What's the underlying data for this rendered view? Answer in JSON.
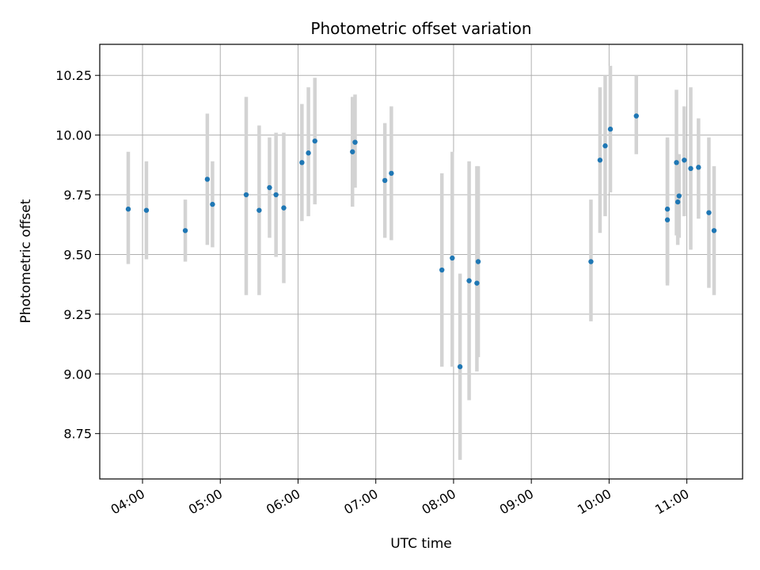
{
  "chart_data": {
    "type": "scatter",
    "title": "Photometric offset variation",
    "xlabel": "UTC time",
    "ylabel": "Photometric offset",
    "grid": true,
    "xlim": [
      "03:27",
      "11:43"
    ],
    "ylim": [
      8.56,
      10.38
    ],
    "x_tick_labels": [
      "04:00",
      "05:00",
      "06:00",
      "07:00",
      "08:00",
      "09:00",
      "10:00",
      "11:00"
    ],
    "y_tick_labels": [
      "8.75",
      "9.00",
      "9.25",
      "9.50",
      "9.75",
      "10.00",
      "10.25"
    ],
    "y_ticks": [
      8.75,
      9.0,
      9.25,
      9.5,
      9.75,
      10.0,
      10.25
    ],
    "colors": {
      "point": "#1f77b4",
      "errorbar": "#d3d3d3",
      "grid": "#b0b0b0"
    },
    "series": [
      {
        "points": [
          {
            "x": "03:49",
            "y": 9.69,
            "ylow": 9.46,
            "yhigh": 9.93
          },
          {
            "x": "04:03",
            "y": 9.685,
            "ylow": 9.48,
            "yhigh": 9.89
          },
          {
            "x": "04:33",
            "y": 9.6,
            "ylow": 9.47,
            "yhigh": 9.73
          },
          {
            "x": "04:50",
            "y": 9.815,
            "ylow": 9.54,
            "yhigh": 10.09
          },
          {
            "x": "04:54",
            "y": 9.71,
            "ylow": 9.53,
            "yhigh": 9.89
          },
          {
            "x": "05:20",
            "y": 9.75,
            "ylow": 9.33,
            "yhigh": 10.16
          },
          {
            "x": "05:30",
            "y": 9.685,
            "ylow": 9.33,
            "yhigh": 10.04
          },
          {
            "x": "05:38",
            "y": 9.78,
            "ylow": 9.57,
            "yhigh": 9.99
          },
          {
            "x": "05:43",
            "y": 9.75,
            "ylow": 9.49,
            "yhigh": 10.01
          },
          {
            "x": "05:49",
            "y": 9.695,
            "ylow": 9.38,
            "yhigh": 10.01
          },
          {
            "x": "06:03",
            "y": 9.885,
            "ylow": 9.64,
            "yhigh": 10.13
          },
          {
            "x": "06:08",
            "y": 9.925,
            "ylow": 9.66,
            "yhigh": 10.2
          },
          {
            "x": "06:13",
            "y": 9.975,
            "ylow": 9.71,
            "yhigh": 10.24
          },
          {
            "x": "06:42",
            "y": 9.93,
            "ylow": 9.7,
            "yhigh": 10.16
          },
          {
            "x": "06:44",
            "y": 9.97,
            "ylow": 9.78,
            "yhigh": 10.17
          },
          {
            "x": "07:07",
            "y": 9.81,
            "ylow": 9.57,
            "yhigh": 10.05
          },
          {
            "x": "07:12",
            "y": 9.84,
            "ylow": 9.56,
            "yhigh": 10.12
          },
          {
            "x": "07:51",
            "y": 9.435,
            "ylow": 9.03,
            "yhigh": 9.84
          },
          {
            "x": "07:59",
            "y": 9.485,
            "ylow": 9.03,
            "yhigh": 9.93
          },
          {
            "x": "08:05",
            "y": 9.03,
            "ylow": 8.64,
            "yhigh": 9.42
          },
          {
            "x": "08:12",
            "y": 9.39,
            "ylow": 8.89,
            "yhigh": 9.89
          },
          {
            "x": "08:18",
            "y": 9.38,
            "ylow": 9.01,
            "yhigh": 9.87
          },
          {
            "x": "08:19",
            "y": 9.47,
            "ylow": 9.07,
            "yhigh": 9.87
          },
          {
            "x": "09:46",
            "y": 9.47,
            "ylow": 9.22,
            "yhigh": 9.73
          },
          {
            "x": "09:53",
            "y": 9.895,
            "ylow": 9.59,
            "yhigh": 10.2
          },
          {
            "x": "09:57",
            "y": 9.955,
            "ylow": 9.66,
            "yhigh": 10.25
          },
          {
            "x": "10:01",
            "y": 10.025,
            "ylow": 9.76,
            "yhigh": 10.29
          },
          {
            "x": "10:21",
            "y": 10.08,
            "ylow": 9.92,
            "yhigh": 10.25
          },
          {
            "x": "10:45",
            "y": 9.645,
            "ylow": 9.37,
            "yhigh": 9.99
          },
          {
            "x": "10:45",
            "y": 9.69,
            "ylow": 9.38,
            "yhigh": 9.98
          },
          {
            "x": "10:52",
            "y": 9.885,
            "ylow": 9.58,
            "yhigh": 10.19
          },
          {
            "x": "10:53",
            "y": 9.72,
            "ylow": 9.54,
            "yhigh": 9.92
          },
          {
            "x": "10:54",
            "y": 9.745,
            "ylow": 9.57,
            "yhigh": 9.92
          },
          {
            "x": "10:58",
            "y": 9.895,
            "ylow": 9.66,
            "yhigh": 10.12
          },
          {
            "x": "11:03",
            "y": 9.86,
            "ylow": 9.52,
            "yhigh": 10.2
          },
          {
            "x": "11:09",
            "y": 9.865,
            "ylow": 9.65,
            "yhigh": 10.07
          },
          {
            "x": "11:17",
            "y": 9.675,
            "ylow": 9.36,
            "yhigh": 9.99
          },
          {
            "x": "11:21",
            "y": 9.6,
            "ylow": 9.33,
            "yhigh": 9.87
          }
        ]
      }
    ]
  }
}
